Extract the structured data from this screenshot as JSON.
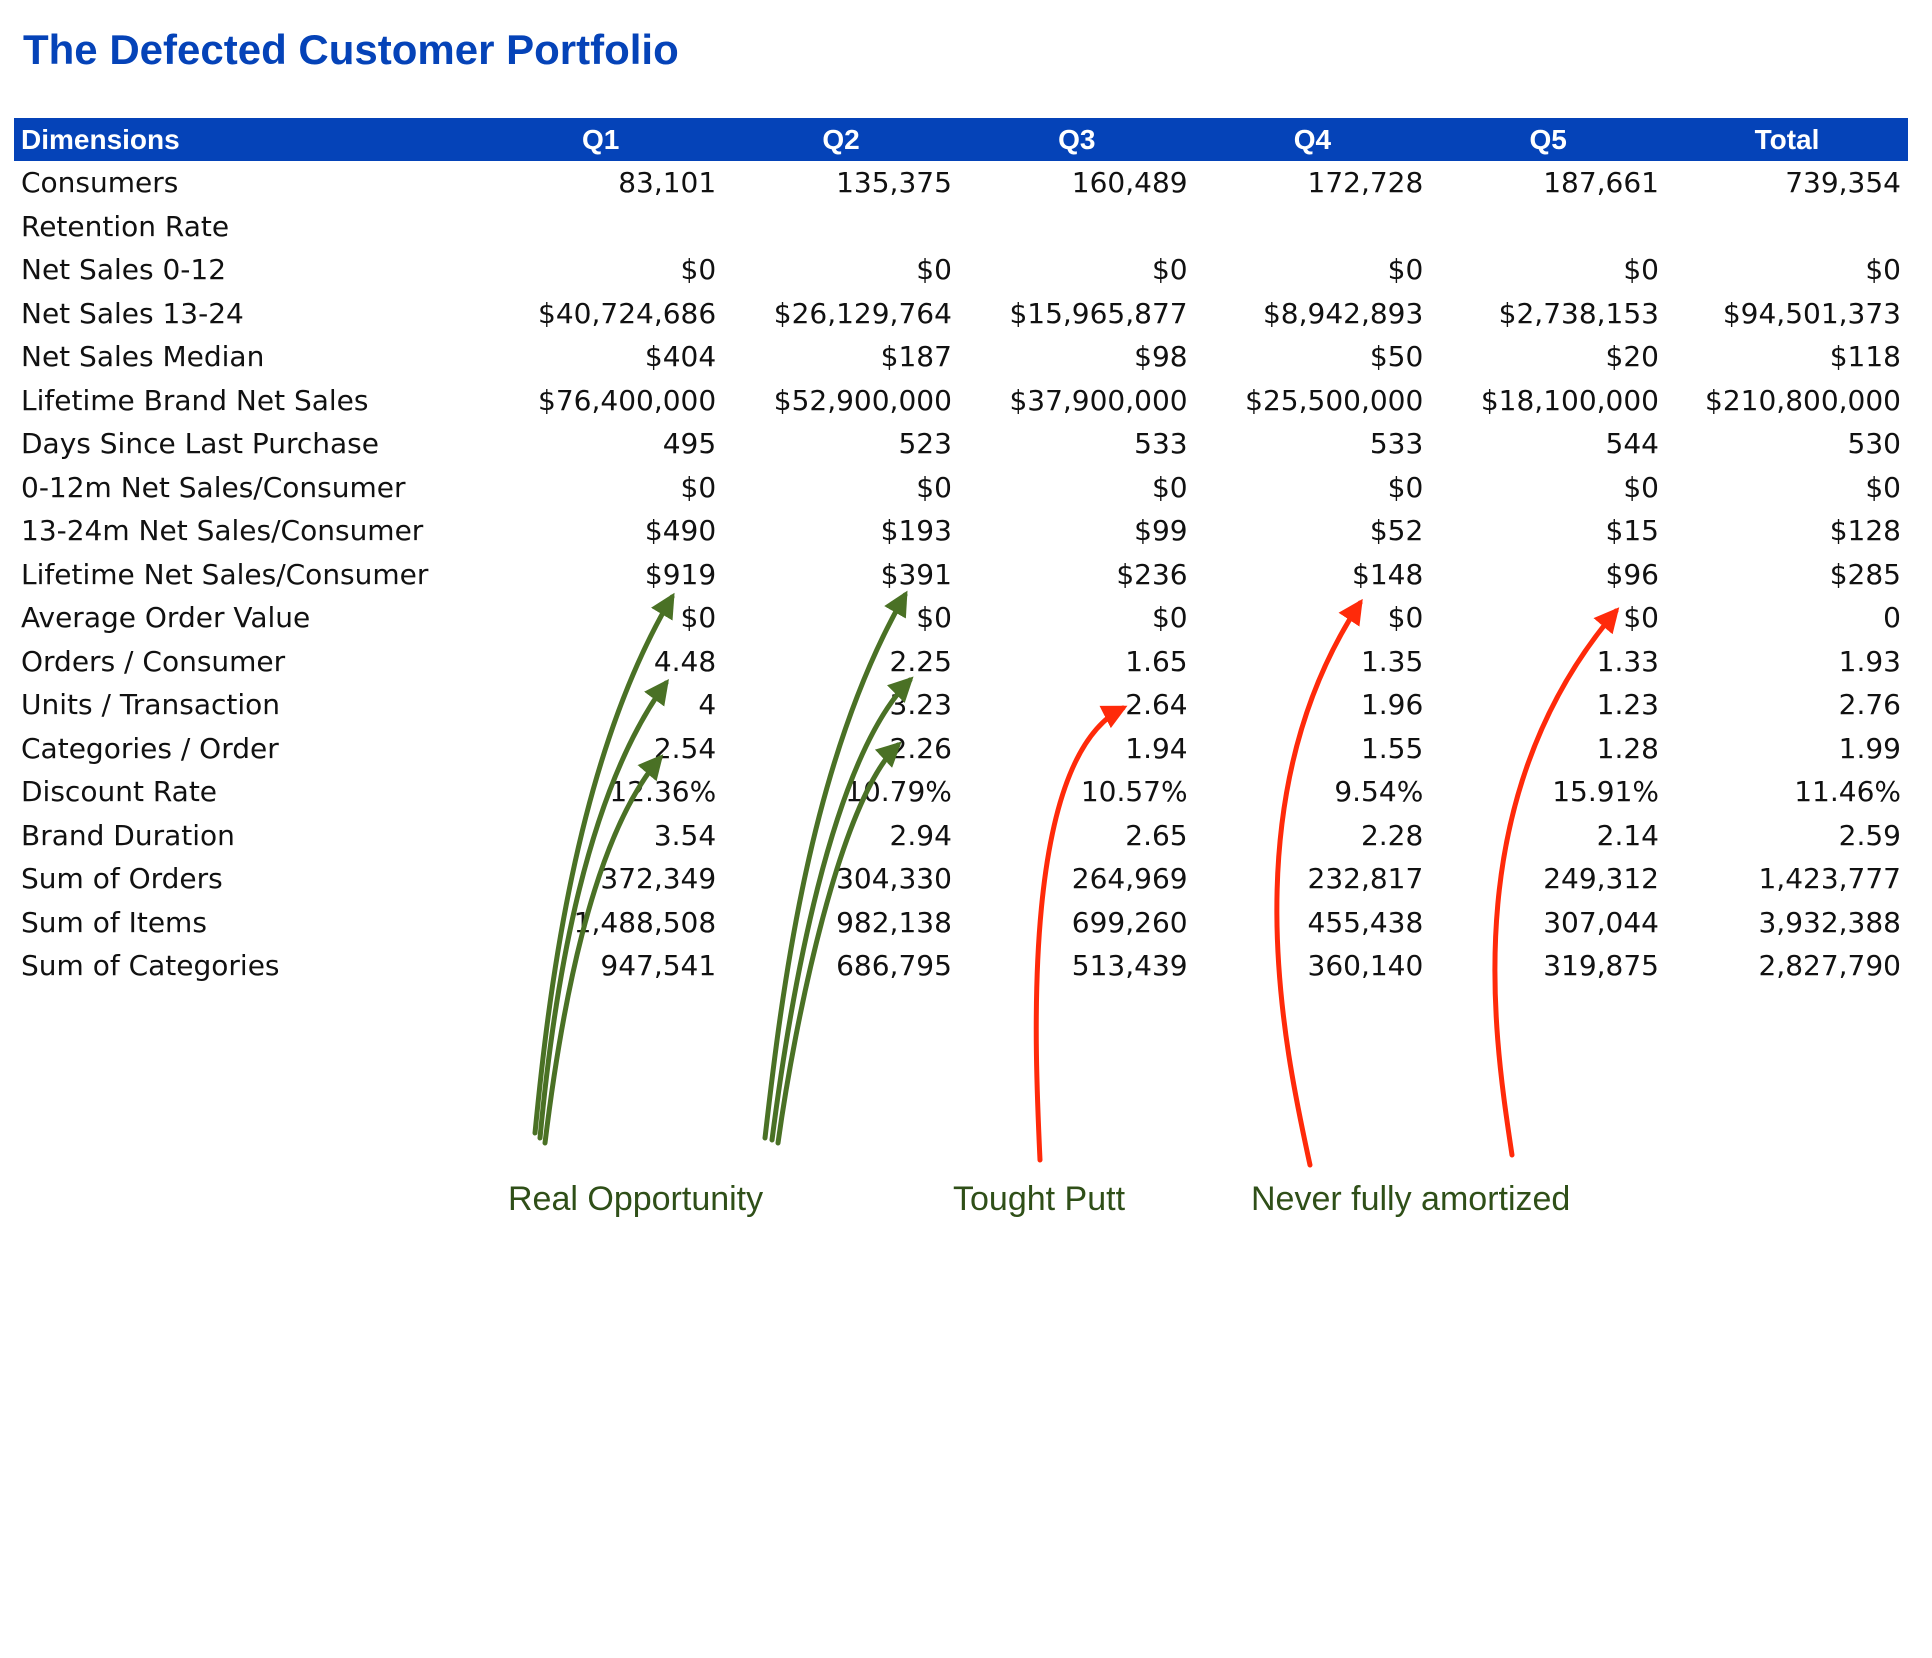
{
  "title": "The Defected Customer Portfolio",
  "table": {
    "headers": [
      "Dimensions",
      "Q1",
      "Q2",
      "Q3",
      "Q4",
      "Q5",
      "Total"
    ],
    "rows": [
      [
        "Consumers",
        "83,101",
        "135,375",
        "160,489",
        "172,728",
        "187,661",
        "739,354"
      ],
      [
        "Retention Rate",
        "",
        "",
        "",
        "",
        "",
        ""
      ],
      [
        "Net Sales 0-12",
        "$0",
        "$0",
        "$0",
        "$0",
        "$0",
        "$0"
      ],
      [
        "Net Sales 13-24",
        "$40,724,686",
        "$26,129,764",
        "$15,965,877",
        "$8,942,893",
        "$2,738,153",
        "$94,501,373"
      ],
      [
        "Net Sales Median",
        "$404",
        "$187",
        "$98",
        "$50",
        "$20",
        "$118"
      ],
      [
        "Lifetime Brand Net Sales",
        "$76,400,000",
        "$52,900,000",
        "$37,900,000",
        "$25,500,000",
        "$18,100,000",
        "$210,800,000"
      ],
      [
        "Days Since Last Purchase",
        "495",
        "523",
        "533",
        "533",
        "544",
        "530"
      ],
      [
        "0-12m Net Sales/Consumer",
        "$0",
        "$0",
        "$0",
        "$0",
        "$0",
        "$0"
      ],
      [
        "13-24m Net Sales/Consumer",
        "$490",
        "$193",
        "$99",
        "$52",
        "$15",
        "$128"
      ],
      [
        "Lifetime Net Sales/Consumer",
        "$919",
        "$391",
        "$236",
        "$148",
        "$96",
        "$285"
      ],
      [
        "Average Order Value",
        "$0",
        "$0",
        "$0",
        "$0",
        "$0",
        "0"
      ],
      [
        "Orders / Consumer",
        "4.48",
        "2.25",
        "1.65",
        "1.35",
        "1.33",
        "1.93"
      ],
      [
        "Units / Transaction",
        "4",
        "3.23",
        "2.64",
        "1.96",
        "1.23",
        "2.76"
      ],
      [
        "Categories / Order",
        "2.54",
        "2.26",
        "1.94",
        "1.55",
        "1.28",
        "1.99"
      ],
      [
        "Discount Rate",
        "12.36%",
        "10.79%",
        "10.57%",
        "9.54%",
        "15.91%",
        "11.46%"
      ],
      [
        "Brand Duration",
        "3.54",
        "2.94",
        "2.65",
        "2.28",
        "2.14",
        "2.59"
      ],
      [
        "Sum of Orders",
        "372,349",
        "304,330",
        "264,969",
        "232,817",
        "249,312",
        "1,423,777"
      ],
      [
        "Sum of Items",
        "1,488,508",
        "982,138",
        "699,260",
        "455,438",
        "307,044",
        "3,932,388"
      ],
      [
        "Sum of Categories",
        "947,541",
        "686,795",
        "513,439",
        "360,140",
        "319,875",
        "2,827,790"
      ]
    ]
  },
  "annotations": [
    {
      "text": "Real Opportunity",
      "color": "#4a7125"
    },
    {
      "text": "Tought Putt",
      "color": "#ff2a0a"
    },
    {
      "text": "Never fully amortized",
      "color": "#ff2a0a"
    }
  ],
  "colors": {
    "header_bg": "#0543b8",
    "title": "#0543b8",
    "green_arrow": "#4a7125",
    "red_arrow": "#ff2a0a",
    "annotation_text": "#2f4f18"
  }
}
